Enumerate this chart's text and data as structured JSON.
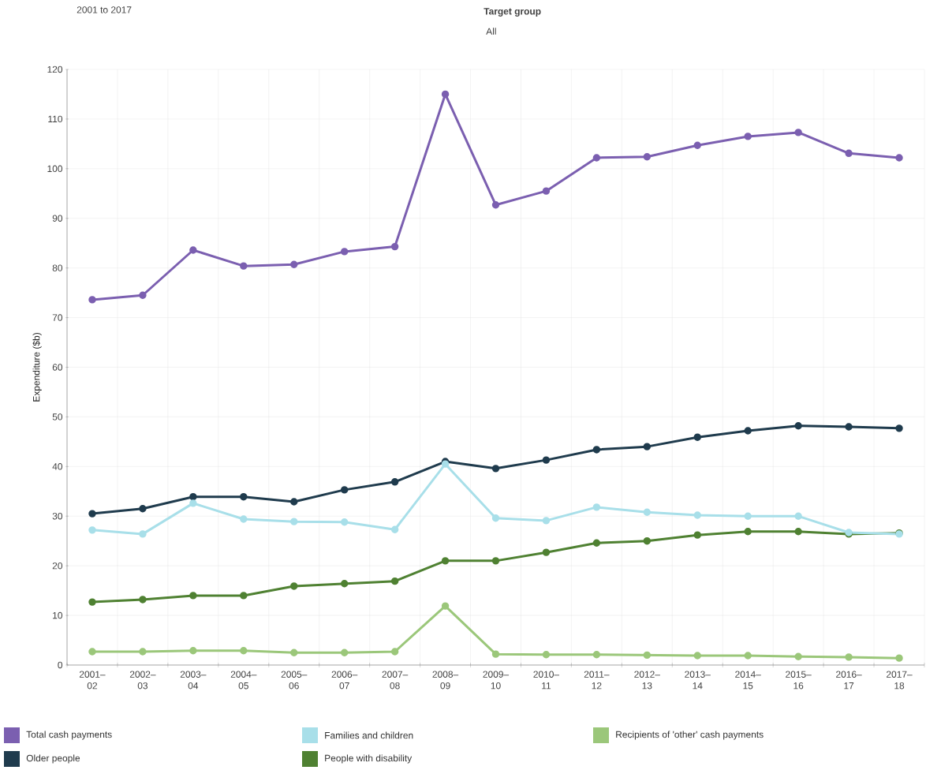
{
  "chart_data": {
    "type": "line",
    "title": "2001 to 2017",
    "annotations": [
      "Target group",
      "All"
    ],
    "ylabel": "Expenditure ($b)",
    "categories": [
      "2001– 02",
      "2002– 03",
      "2003– 04",
      "2004– 05",
      "2005– 06",
      "2006– 07",
      "2007– 08",
      "2008– 09",
      "2009– 10",
      "2010– 11",
      "2011– 12",
      "2012– 13",
      "2013– 14",
      "2014– 15",
      "2015– 16",
      "2016– 17",
      "2017– 18"
    ],
    "series": [
      {
        "name": "Total cash payments",
        "color": "#7b5fb0",
        "values": [
          73.6,
          74.5,
          83.6,
          80.4,
          80.7,
          83.3,
          84.3,
          115,
          92.7,
          95.5,
          102.2,
          102.4,
          104.7,
          106.5,
          107.3,
          103.1,
          102.2
        ]
      },
      {
        "name": "Families and children",
        "color": "#a8dfe9",
        "values": [
          27.2,
          26.4,
          32.6,
          29.4,
          28.9,
          28.8,
          27.3,
          40.5,
          29.6,
          29.1,
          31.8,
          30.8,
          30.2,
          30.0,
          30.0,
          26.7,
          26.4
        ]
      },
      {
        "name": "Recipients of 'other' cash payments",
        "color": "#9bc77a",
        "values": [
          2.7,
          2.7,
          2.9,
          2.9,
          2.5,
          2.5,
          2.7,
          11.9,
          2.2,
          2.1,
          2.1,
          2.0,
          1.9,
          1.9,
          1.7,
          1.6,
          1.4
        ]
      },
      {
        "name": "Older people",
        "color": "#1f3b4d",
        "values": [
          30.5,
          31.5,
          33.9,
          33.9,
          32.9,
          35.3,
          36.9,
          41.0,
          39.6,
          41.3,
          43.4,
          44.0,
          45.9,
          47.2,
          48.2,
          48.0,
          47.7
        ]
      },
      {
        "name": "People with disability",
        "color": "#4f8132",
        "values": [
          12.7,
          13.2,
          14.0,
          14.0,
          15.9,
          16.4,
          16.9,
          21.0,
          21.0,
          22.7,
          24.6,
          25.0,
          26.2,
          26.9,
          26.9,
          26.4,
          26.6
        ]
      }
    ],
    "ylim": [
      0,
      120
    ],
    "yticks": [
      0,
      10,
      20,
      30,
      40,
      50,
      60,
      70,
      80,
      90,
      100,
      110,
      120
    ],
    "grid": true,
    "legend": "bottom",
    "marker": "circle",
    "line_style": "solid"
  }
}
